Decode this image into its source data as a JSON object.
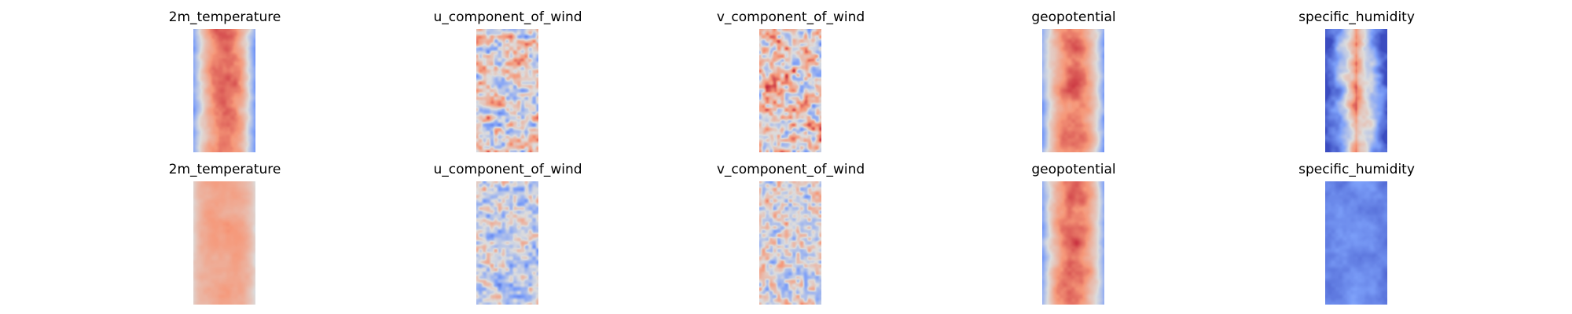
{
  "chart_data": {
    "type": "heatmap",
    "colormap": "coolwarm",
    "rows": [
      {
        "panels": [
          {
            "title": "2m_temperature",
            "pattern": "warm_center_band"
          },
          {
            "title": "u_component_of_wind",
            "pattern": "mixed_streaks"
          },
          {
            "title": "v_component_of_wind",
            "pattern": "mixed_blobs"
          },
          {
            "title": "geopotential",
            "pattern": "warm_center_band"
          },
          {
            "title": "specific_humidity",
            "pattern": "narrow_warm_center_cool_edges"
          }
        ]
      },
      {
        "panels": [
          {
            "title": "2m_temperature",
            "pattern": "mostly_warm_uniform"
          },
          {
            "title": "u_component_of_wind",
            "pattern": "mostly_neutral_streaks"
          },
          {
            "title": "v_component_of_wind",
            "pattern": "mostly_neutral_blobs"
          },
          {
            "title": "geopotential",
            "pattern": "warm_center_band"
          },
          {
            "title": "specific_humidity",
            "pattern": "mostly_cool_uniform"
          }
        ]
      }
    ]
  }
}
